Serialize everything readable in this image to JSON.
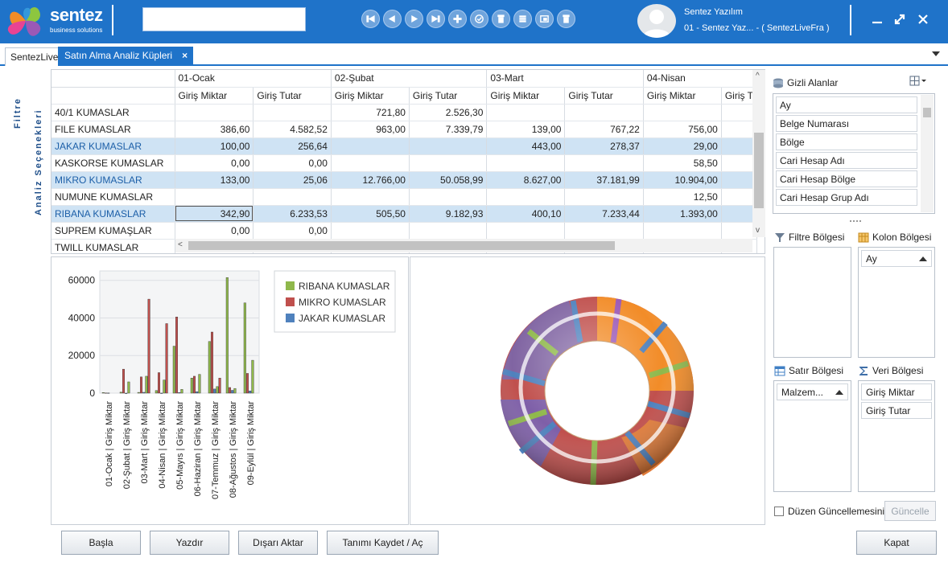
{
  "app": {
    "brand": "sentez",
    "brand_sub": "business solutions",
    "search_value": "",
    "user_name": "Sentez Yazılım",
    "user_company": "01 - Sentez Yaz... - ( SentezLiveFra )"
  },
  "tabs": [
    {
      "label": "SentezLive"
    },
    {
      "label": "Satın Alma Analiz Küpleri",
      "close": "×"
    }
  ],
  "side_labels": {
    "filtre": "Filtre",
    "analiz": "Analiz Seçenekleri"
  },
  "grid": {
    "months": [
      "01-Ocak",
      "02-Şubat",
      "03-Mart",
      "04-Nisan"
    ],
    "measures": [
      "Giriş Miktar",
      "Giriş Tutar",
      "Giriş Miktar",
      "Giriş Tutar",
      "Giriş Miktar",
      "Giriş Tutar",
      "Giriş Miktar",
      "Giriş T"
    ],
    "rows": [
      {
        "name": "40/1 KUMASLAR",
        "values": [
          "",
          "",
          "721,80",
          "2.526,30",
          "",
          "",
          "",
          ""
        ]
      },
      {
        "name": "FILE KUMASLAR",
        "values": [
          "386,60",
          "4.582,52",
          "963,00",
          "7.339,79",
          "139,00",
          "767,22",
          "756,00",
          ""
        ]
      },
      {
        "name": "JAKAR KUMASLAR",
        "values": [
          "100,00",
          "256,64",
          "",
          "",
          "443,00",
          "278,37",
          "29,00",
          ""
        ]
      },
      {
        "name": "KASKORSE KUMASLAR",
        "values": [
          "0,00",
          "0,00",
          "",
          "",
          "",
          "",
          "58,50",
          ""
        ]
      },
      {
        "name": "MIKRO KUMASLAR",
        "values": [
          "133,00",
          "25,06",
          "12.766,00",
          "50.058,99",
          "8.627,00",
          "37.181,99",
          "10.904,00",
          ""
        ]
      },
      {
        "name": "NUMUNE KUMASLAR",
        "values": [
          "",
          "",
          "",
          "",
          "",
          "",
          "12,50",
          ""
        ]
      },
      {
        "name": "RIBANA KUMASLAR",
        "values": [
          "342,90",
          "6.233,53",
          "505,50",
          "9.182,93",
          "400,10",
          "7.233,44",
          "1.393,00",
          ""
        ]
      },
      {
        "name": "SUPREM KUMAŞLAR",
        "values": [
          "0,00",
          "0,00",
          "",
          "",
          "",
          "",
          "",
          ""
        ]
      },
      {
        "name": "TWILL KUMASLAR",
        "values": [
          "",
          "",
          "",
          "",
          "",
          "",
          "",
          ""
        ]
      }
    ],
    "highlight_rows": [
      "JAKAR KUMASLAR",
      "MIKRO KUMASLAR",
      "RIBANA KUMASLAR"
    ]
  },
  "chart_data": {
    "type": "bar",
    "categories": [
      "01-Ocak | Giriş Miktar",
      "02-Şubat | Giriş Miktar",
      "03-Mart | Giriş Miktar",
      "04-Nisan | Giriş Miktar",
      "05-Mayıs | Giriş Miktar",
      "06-Haziran | Giriş Miktar",
      "07-Temmuz | Giriş Miktar",
      "08-Ağustos | Giriş Miktar",
      "09-Eylül | Giriş Miktar"
    ],
    "series": [
      {
        "name": "RIBANA KUMASLAR",
        "color": "#8fb84b",
        "values": [
          343,
          506,
          400,
          1393,
          25000,
          8000,
          27500,
          61500,
          48000
        ]
      },
      {
        "name": "MIKRO KUMASLAR",
        "color": "#c0504d",
        "values": [
          133,
          12766,
          8627,
          10904,
          40500,
          9000,
          32500,
          3000,
          10500
        ]
      },
      {
        "name": "JAKAR KUMASLAR",
        "color": "#4f81bd",
        "values": [
          100,
          0,
          443,
          29,
          300,
          800,
          2200,
          1500,
          1200
        ]
      }
    ],
    "extra_values": {
      "RIBANA KUMASLAR": [
        0,
        6000,
        9000,
        7000,
        2000,
        10000,
        3500,
        2500,
        17500
      ],
      "MIKRO KUMASLAR": [
        0,
        0,
        50000,
        37000,
        0,
        0,
        8000,
        0,
        0
      ]
    },
    "yticks": [
      0,
      20000,
      40000,
      60000
    ],
    "ylim": [
      0,
      65000
    ],
    "grid": true,
    "legend": "top-right"
  },
  "right_panel": {
    "hidden_title": "Gizli Alanlar",
    "hidden_fields": [
      "Ay",
      "Belge Numarası",
      "Bölge",
      "Cari Hesap Adı",
      "Cari Hesap Bölge",
      "Cari Hesap Grup Adı"
    ],
    "filter_title": "Filtre Bölgesi",
    "column_title": "Kolon Bölgesi",
    "column_fields": [
      "Ay"
    ],
    "row_title": "Satır Bölgesi",
    "row_fields": [
      "Malzem..."
    ],
    "data_title": "Veri Bölgesi",
    "data_fields": [
      "Giriş Miktar",
      "Giriş Tutar"
    ],
    "defer_label": "Düzen Güncellemesini Ertele",
    "update_label": "Güncelle"
  },
  "buttons": {
    "start": "Başla",
    "print": "Yazdır",
    "export": "Dışarı Aktar",
    "save_def": "Tanımı Kaydet / Aç",
    "close": "Kapat"
  }
}
